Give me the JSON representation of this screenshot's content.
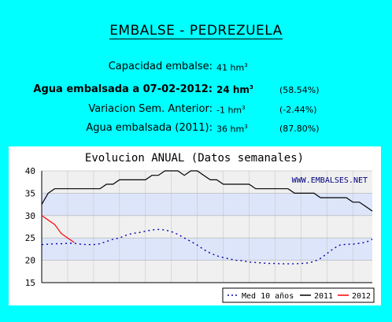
{
  "header": {
    "title": "EMBALSE - PEDREZUELA"
  },
  "stats": {
    "capacity": {
      "label": "Capacidad embalse:",
      "value": "41 hm",
      "unit_exp": "3"
    },
    "stored": {
      "label": "Agua embalsada a 07-02-2012:",
      "value": "24 hm",
      "unit_exp": "3",
      "pct": "(58.54%)"
    },
    "variation": {
      "label": "Variacion Sem. Anterior:",
      "value": "-1 hm",
      "unit_exp": "3",
      "pct": "(-2.44%)"
    },
    "last_year": {
      "label": "Agua embalsada (2011):",
      "value": "36 hm",
      "unit_exp": "3",
      "pct": "(87.80%)"
    }
  },
  "chart_data": {
    "type": "line",
    "title": "Evolucion ANUAL (Datos semanales)",
    "watermark": "WWW.EMBALSES.NET",
    "xlabel": "",
    "ylabel": "",
    "ylim": [
      15,
      40
    ],
    "yticks": [
      15,
      20,
      25,
      30,
      35,
      40
    ],
    "weeks": 52,
    "legend_position": "bottom-right",
    "series": [
      {
        "name": "Med 10 años",
        "color": "#0000aa",
        "style": "dotted",
        "values": [
          23.5,
          23.6,
          23.7,
          23.7,
          23.8,
          23.8,
          23.6,
          23.5,
          23.5,
          23.7,
          24.2,
          24.7,
          25.0,
          25.6,
          26.0,
          26.2,
          26.5,
          26.8,
          26.9,
          26.8,
          26.4,
          25.8,
          25.0,
          24.2,
          23.4,
          22.4,
          21.6,
          21.0,
          20.6,
          20.3,
          20.0,
          19.9,
          19.6,
          19.5,
          19.4,
          19.3,
          19.3,
          19.2,
          19.2,
          19.2,
          19.3,
          19.4,
          19.7,
          20.4,
          21.5,
          22.6,
          23.4,
          23.6,
          23.6,
          23.8,
          24.0,
          24.7
        ]
      },
      {
        "name": "2011",
        "color": "#000000",
        "style": "solid",
        "values": [
          32.5,
          35.0,
          36.0,
          36.0,
          36.0,
          36.0,
          36.0,
          36.0,
          36.0,
          36.0,
          37.0,
          37.0,
          38.0,
          38.0,
          38.0,
          38.0,
          38.0,
          39.0,
          39.0,
          40.0,
          40.0,
          40.0,
          39.0,
          40.0,
          40.0,
          39.0,
          38.0,
          38.0,
          37.0,
          37.0,
          37.0,
          37.0,
          37.0,
          36.0,
          36.0,
          36.0,
          36.0,
          36.0,
          36.0,
          35.0,
          35.0,
          35.0,
          35.0,
          34.0,
          34.0,
          34.0,
          34.0,
          34.0,
          33.0,
          33.0,
          32.0,
          31.0
        ]
      },
      {
        "name": "2012",
        "color": "#ff0000",
        "style": "solid",
        "values": [
          30.0,
          29.0,
          28.0,
          26.0,
          25.0,
          24.0
        ]
      }
    ]
  }
}
